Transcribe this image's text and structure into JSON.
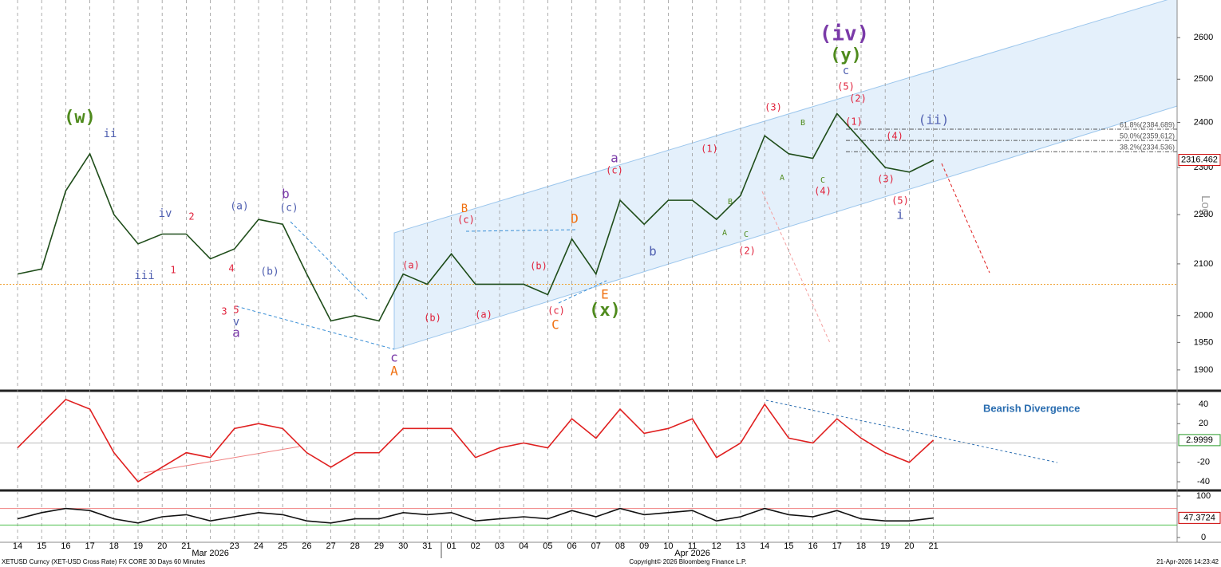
{
  "chart_data": [
    {
      "type": "line",
      "color": "#1f4d1a",
      "categories": [
        "14",
        "15",
        "16",
        "17",
        "18",
        "19",
        "20",
        "21",
        null,
        "23",
        "24",
        "25",
        "26",
        "27",
        "28",
        "29",
        "30",
        "31",
        "01",
        "02",
        "03",
        "04",
        "05",
        "06",
        "07",
        "08",
        "09",
        "10",
        "11",
        "12",
        "13",
        "14",
        "15",
        "16",
        "17",
        "18",
        "19",
        "20",
        "21"
      ],
      "month_labels": [
        "Mar 2026",
        "Apr 2026"
      ],
      "values": [
        2080,
        2090,
        2250,
        2330,
        2200,
        2140,
        2160,
        2160,
        2110,
        2130,
        2190,
        2180,
        2080,
        1990,
        2000,
        1990,
        2080,
        2060,
        2120,
        2060,
        2060,
        2060,
        2040,
        2150,
        2080,
        2230,
        2180,
        2230,
        2230,
        2190,
        2240,
        2370,
        2330,
        2320,
        2420,
        2360,
        2300,
        2290,
        2316
      ],
      "ylim": [
        1863,
        2694
      ],
      "log_scale": true,
      "axis_label": "Log",
      "yticks": [
        1900,
        1950,
        2000,
        2100,
        2200,
        2300,
        2400,
        2500,
        2600
      ],
      "last_value": 2316.462,
      "reference_line": 2060,
      "fib_levels": [
        {
          "value": 2384.689,
          "label": "61.8%(2384.689)"
        },
        {
          "value": 2359.612,
          "label": "50.0%(2359.612)"
        },
        {
          "value": 2334.536,
          "label": "38.2%(2334.536)"
        }
      ]
    },
    {
      "type": "line",
      "color": "#e02020",
      "values": [
        -5,
        20,
        45,
        35,
        -10,
        -40,
        -25,
        -10,
        -15,
        15,
        20,
        15,
        -10,
        -25,
        -10,
        -10,
        15,
        15,
        15,
        -15,
        -5,
        0,
        -5,
        25,
        5,
        35,
        10,
        15,
        25,
        -15,
        0,
        40,
        5,
        0,
        25,
        5,
        -10,
        -20,
        3
      ],
      "ylim": [
        -49,
        51.5
      ],
      "yticks": [
        40,
        20,
        -20,
        -40
      ],
      "last_value": 2.9999,
      "annotation": "Bearish Divergence"
    },
    {
      "type": "line",
      "color": "#111111",
      "values": [
        45,
        60,
        70,
        65,
        45,
        35,
        50,
        55,
        40,
        50,
        60,
        55,
        40,
        35,
        45,
        45,
        60,
        55,
        60,
        40,
        45,
        50,
        45,
        65,
        50,
        70,
        55,
        60,
        65,
        40,
        50,
        70,
        55,
        50,
        65,
        45,
        40,
        40,
        47
      ],
      "ylim": [
        -11.5,
        109.6
      ],
      "yticks": [
        100,
        0
      ],
      "levels": [
        70,
        30
      ],
      "last_value": 47.3724
    }
  ],
  "annotations": [
    {
      "text": "(w)",
      "color": "#4e8a1c"
    },
    {
      "text": "ii",
      "color": "#4f5fb0"
    },
    {
      "text": "iv",
      "color": "#4f5fb0"
    },
    {
      "text": "2",
      "color": "#e0203a"
    },
    {
      "text": "iii",
      "color": "#4f5fb0"
    },
    {
      "text": "1",
      "color": "#e0203a"
    },
    {
      "text": "(a)",
      "color": "#4f5fb0"
    },
    {
      "text": "b",
      "color": "#7a3aa8"
    },
    {
      "text": "(c)",
      "color": "#4f5fb0"
    },
    {
      "text": "4",
      "color": "#e0203a"
    },
    {
      "text": "(b)",
      "color": "#4f5fb0"
    },
    {
      "text": "3",
      "color": "#e0203a"
    },
    {
      "text": "5",
      "color": "#e0203a"
    },
    {
      "text": "v",
      "color": "#4f5fb0"
    },
    {
      "text": "a",
      "color": "#7a3aa8"
    },
    {
      "text": "c",
      "color": "#7a3aa8"
    },
    {
      "text": "A",
      "color": "#f07010"
    },
    {
      "text": "(a)",
      "color": "#e0203a"
    },
    {
      "text": "(b)",
      "color": "#e0203a"
    },
    {
      "text": "B",
      "color": "#f07010"
    },
    {
      "text": "(c)",
      "color": "#e0203a"
    },
    {
      "text": "(a)",
      "color": "#e0203a"
    },
    {
      "text": "(b)",
      "color": "#e0203a"
    },
    {
      "text": "D",
      "color": "#f07010"
    },
    {
      "text": "(c)",
      "color": "#e0203a"
    },
    {
      "text": "C",
      "color": "#f07010"
    },
    {
      "text": "E",
      "color": "#f07010"
    },
    {
      "text": "(x)",
      "color": "#4e8a1c"
    },
    {
      "text": "a",
      "color": "#7a3aa8"
    },
    {
      "text": "(c)",
      "color": "#e0203a"
    },
    {
      "text": "b",
      "color": "#4f5fb0"
    },
    {
      "text": "(1)",
      "color": "#e0203a"
    },
    {
      "text": "B",
      "color": "#4e8a1c"
    },
    {
      "text": "A",
      "color": "#4e8a1c"
    },
    {
      "text": "C",
      "color": "#4e8a1c"
    },
    {
      "text": "(2)",
      "color": "#e0203a"
    },
    {
      "text": "(3)",
      "color": "#e0203a"
    },
    {
      "text": "B",
      "color": "#4e8a1c"
    },
    {
      "text": "A",
      "color": "#4e8a1c"
    },
    {
      "text": "C",
      "color": "#4e8a1c"
    },
    {
      "text": "(4)",
      "color": "#e0203a"
    },
    {
      "text": "(iv)",
      "color": "#7a3aa8"
    },
    {
      "text": "(y)",
      "color": "#4e8a1c"
    },
    {
      "text": "c",
      "color": "#4f5fb0"
    },
    {
      "text": "(5)",
      "color": "#e0203a"
    },
    {
      "text": "(2)",
      "color": "#e0203a"
    },
    {
      "text": "(1)",
      "color": "#e0203a"
    },
    {
      "text": "(4)",
      "color": "#e0203a"
    },
    {
      "text": "(ii)",
      "color": "#4f5fb0"
    },
    {
      "text": "(3)",
      "color": "#e0203a"
    },
    {
      "text": "(5)",
      "color": "#e0203a"
    },
    {
      "text": "i",
      "color": "#4f5fb0"
    }
  ],
  "footer": {
    "left": "XETUSD Curncy (XET-USD Cross Rate) FX CORE 30 Days 60 Minutes",
    "center": "Copyright© 2026 Bloomberg Finance L.P.",
    "right": "21-Apr-2026 14:23:42"
  }
}
